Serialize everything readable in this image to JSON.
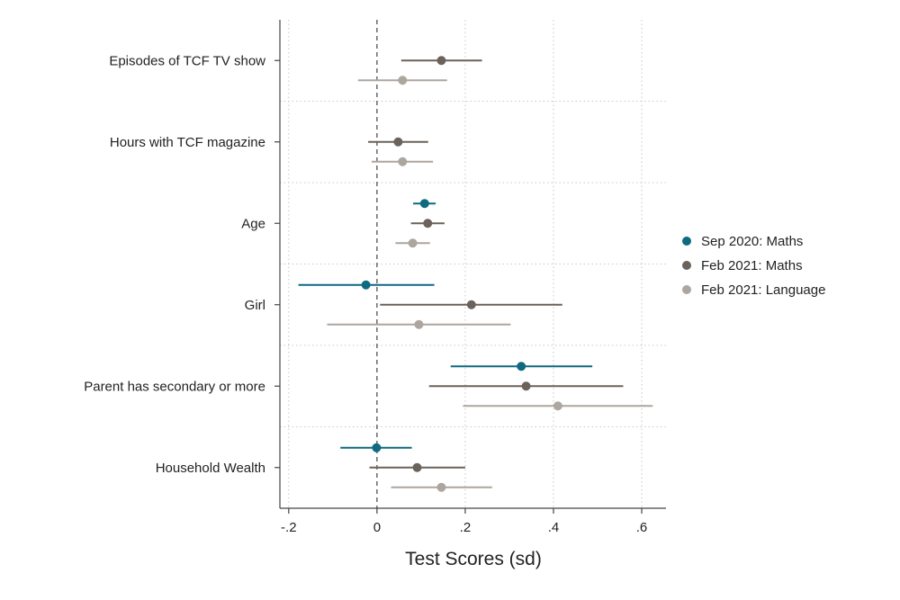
{
  "chart_data": {
    "type": "coefficient-plot",
    "title": "",
    "xlabel": "Test Scores (sd)",
    "ylabel": "",
    "xlim": [
      -0.22,
      0.655
    ],
    "xticks": [
      -0.2,
      0,
      0.2,
      0.4,
      0.6
    ],
    "xtick_labels": [
      "-.2",
      "0",
      ".2",
      ".4",
      ".6"
    ],
    "reference_line": 0,
    "grid": true,
    "legend_position": "right",
    "categories": [
      "Episodes of TCF TV show",
      "Hours with TCF magazine",
      "Age",
      "Girl",
      "Parent has secondary or more",
      "Household Wealth"
    ],
    "series": [
      {
        "name": "Sep 2020: Maths",
        "color": "#0e6a80",
        "points": [
          null,
          null,
          {
            "estimate": 0.108,
            "ci_low": 0.082,
            "ci_high": 0.133
          },
          {
            "estimate": -0.025,
            "ci_low": -0.178,
            "ci_high": 0.13
          },
          {
            "estimate": 0.327,
            "ci_low": 0.167,
            "ci_high": 0.488
          },
          {
            "estimate": -0.001,
            "ci_low": -0.083,
            "ci_high": 0.079
          }
        ]
      },
      {
        "name": "Feb 2021: Maths",
        "color": "#6a625b",
        "points": [
          {
            "estimate": 0.146,
            "ci_low": 0.055,
            "ci_high": 0.238
          },
          {
            "estimate": 0.048,
            "ci_low": -0.02,
            "ci_high": 0.116
          },
          {
            "estimate": 0.115,
            "ci_low": 0.077,
            "ci_high": 0.153
          },
          {
            "estimate": 0.214,
            "ci_low": 0.007,
            "ci_high": 0.42
          },
          {
            "estimate": 0.338,
            "ci_low": 0.118,
            "ci_high": 0.558
          },
          {
            "estimate": 0.091,
            "ci_low": -0.017,
            "ci_high": 0.2
          }
        ]
      },
      {
        "name": "Feb 2021: Language",
        "color": "#ada69f",
        "points": [
          {
            "estimate": 0.058,
            "ci_low": -0.043,
            "ci_high": 0.159
          },
          {
            "estimate": 0.058,
            "ci_low": -0.012,
            "ci_high": 0.127
          },
          {
            "estimate": 0.081,
            "ci_low": 0.042,
            "ci_high": 0.12
          },
          {
            "estimate": 0.095,
            "ci_low": -0.113,
            "ci_high": 0.303
          },
          {
            "estimate": 0.41,
            "ci_low": 0.195,
            "ci_high": 0.625
          },
          {
            "estimate": 0.146,
            "ci_low": 0.032,
            "ci_high": 0.261
          }
        ]
      }
    ]
  }
}
